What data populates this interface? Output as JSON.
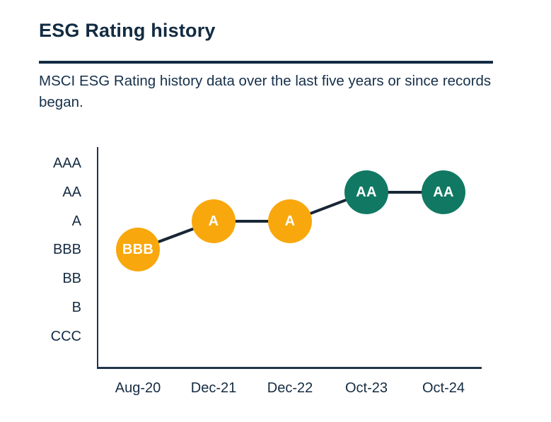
{
  "header": {
    "title": "ESG Rating history",
    "subtitle": "MSCI ESG Rating history data over the last five years or since records began."
  },
  "chart_data": {
    "type": "line",
    "title": "ESG Rating history",
    "x": [
      "Aug-20",
      "Dec-21",
      "Dec-22",
      "Oct-23",
      "Oct-24"
    ],
    "y_categories_top_to_bottom": [
      "AAA",
      "AA",
      "A",
      "BBB",
      "BB",
      "B",
      "CCC"
    ],
    "series": [
      {
        "name": "MSCI ESG Rating",
        "values": [
          "BBB",
          "A",
          "A",
          "AA",
          "AA"
        ]
      }
    ],
    "point_labels": [
      "BBB",
      "A",
      "A",
      "AA",
      "AA"
    ],
    "marker_colors": [
      "#F8A80D",
      "#F8A80D",
      "#F8A80D",
      "#117963",
      "#117963"
    ],
    "xlabel": "",
    "ylabel": "",
    "legend": "none",
    "grid": false
  },
  "colors": {
    "navy_text": "#122B41",
    "divider": "#122B41",
    "axis": "#22354A",
    "connector_line": "#182635",
    "amber_marker": "#F8A80D",
    "teal_marker": "#117963",
    "marker_label": "#FFFFFF"
  }
}
